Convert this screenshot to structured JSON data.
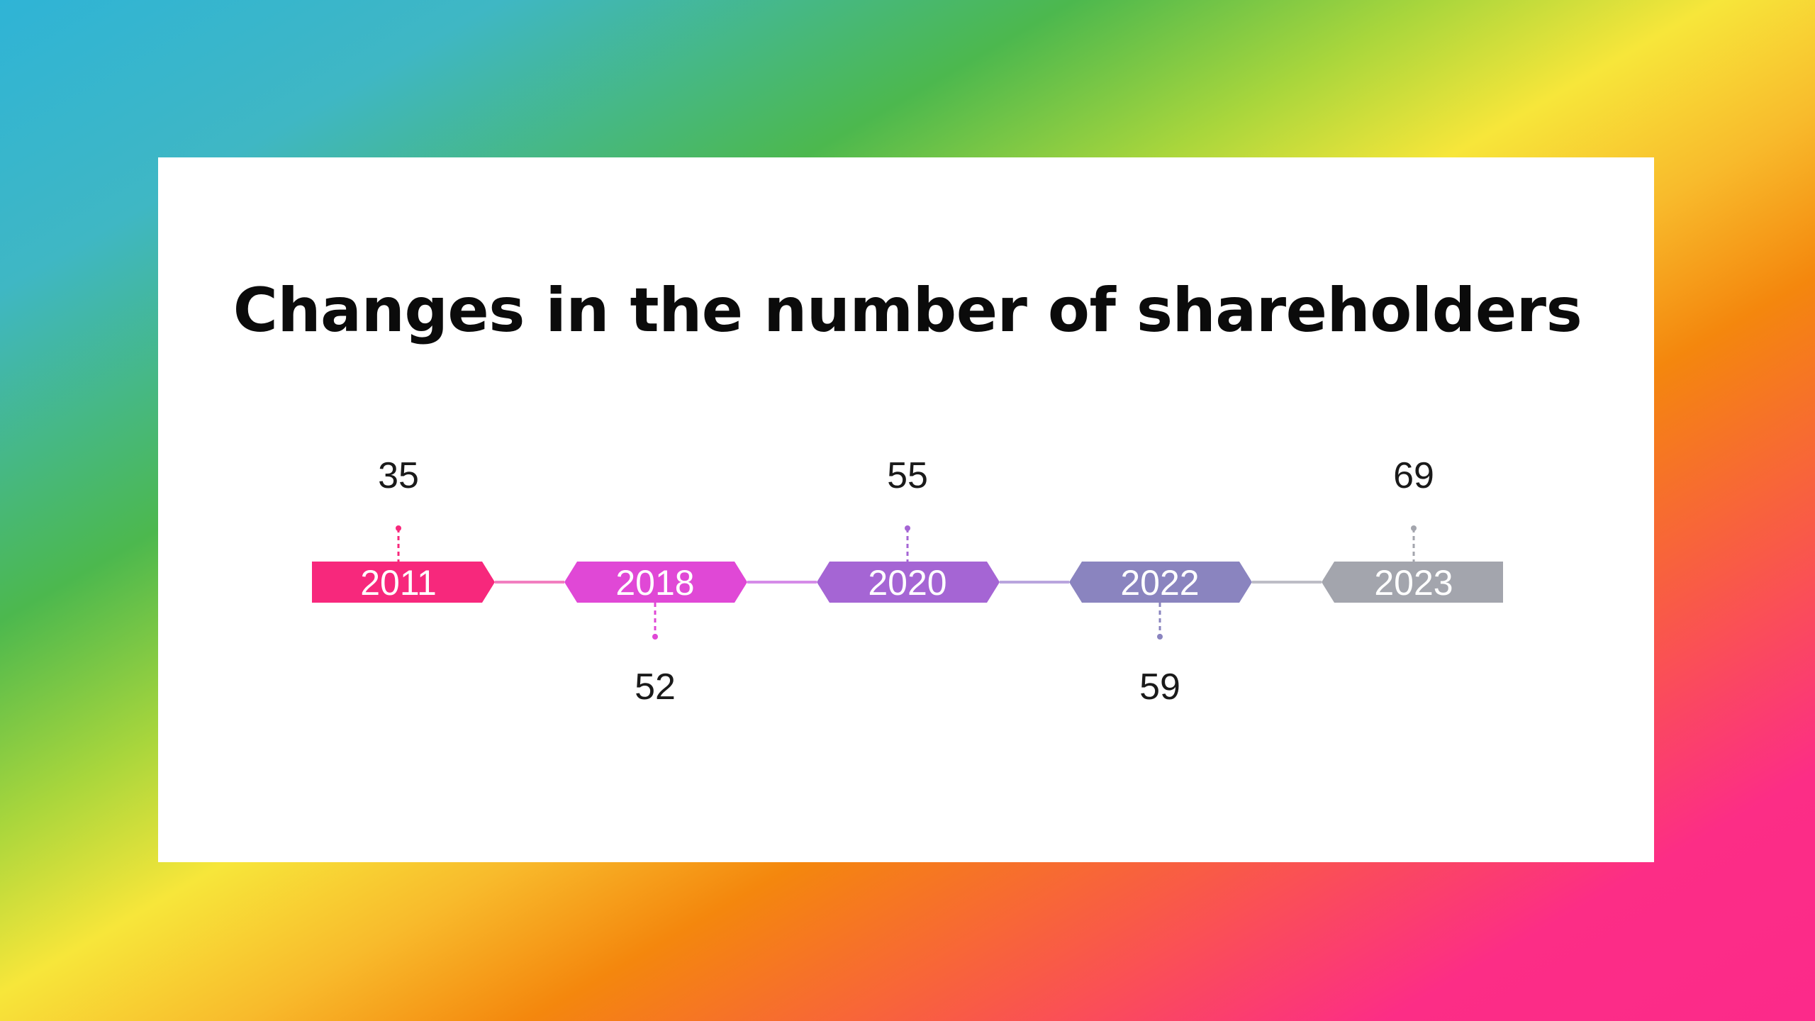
{
  "title": "Changes in the number of shareholders",
  "milestones": [
    {
      "year": "2011",
      "value": "35",
      "label_position": "above",
      "color": "#f7287c"
    },
    {
      "year": "2018",
      "value": "52",
      "label_position": "below",
      "color": "#e048d6"
    },
    {
      "year": "2020",
      "value": "55",
      "label_position": "above",
      "color": "#a565d4"
    },
    {
      "year": "2022",
      "value": "59",
      "label_position": "below",
      "color": "#8a84bf"
    },
    {
      "year": "2023",
      "value": "69",
      "label_position": "above",
      "color": "#a3a5ad"
    }
  ],
  "connector_colors": [
    "#f27fc0",
    "#d58be8",
    "#b9a5de",
    "#bdbdc6"
  ]
}
